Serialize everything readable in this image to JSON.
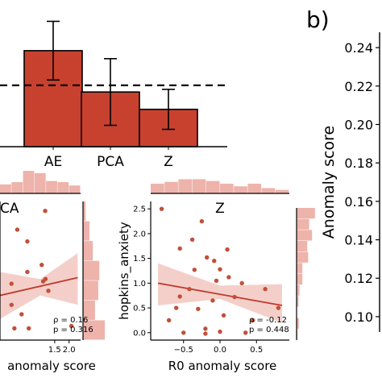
{
  "panel_label": "b)",
  "colors": {
    "bar": "#c8412f",
    "bar_edge": "#000000",
    "scatter": "#c0503a",
    "fit_line": "#c0392b",
    "ci_band": "#f2c7c0",
    "hist": "#eeb3ab"
  },
  "chart_data": [
    {
      "type": "bar",
      "categories": [
        "AE",
        "PCA",
        "Z"
      ],
      "values": [
        0.242,
        0.211,
        0.198
      ],
      "errors": [
        0.022,
        0.025,
        0.015
      ],
      "reference_line": 0.216,
      "reference_line_style": "dashed",
      "ylim": [
        0.17,
        0.28
      ],
      "xlabel": "",
      "ylabel": ""
    },
    {
      "type": "scatter",
      "panel": "PCA",
      "title": "CA",
      "xlabel": "anomaly score",
      "ylabel": "",
      "x_ticks": [
        "1.5",
        "2.0"
      ],
      "xlim": [
        -0.4,
        2.4
      ],
      "ylim": [
        -0.25,
        2.7
      ],
      "points": [
        {
          "x": 1.17,
          "y": 2.5
        },
        {
          "x": 0.2,
          "y": 2.1
        },
        {
          "x": 0.55,
          "y": 1.85
        },
        {
          "x": 1.05,
          "y": 1.35
        },
        {
          "x": 0.55,
          "y": 1.2
        },
        {
          "x": 1.18,
          "y": 1.05
        },
        {
          "x": 1.1,
          "y": 1.0
        },
        {
          "x": 0.0,
          "y": 0.95
        },
        {
          "x": 1.28,
          "y": 0.8
        },
        {
          "x": 0.0,
          "y": 0.5
        },
        {
          "x": 0.35,
          "y": 0.3
        },
        {
          "x": 0.1,
          "y": 0.0
        },
        {
          "x": 0.6,
          "y": 0.0
        },
        {
          "x": 2.08,
          "y": 0.05
        }
      ],
      "fit": {
        "x": [
          -0.4,
          2.3
        ],
        "y": [
          0.7,
          1.08
        ]
      },
      "ci_upper": {
        "x": [
          -0.4,
          1.0,
          2.3
        ],
        "y": [
          1.2,
          1.05,
          1.6
        ]
      },
      "ci_lower": {
        "x": [
          -0.4,
          1.0,
          2.3
        ],
        "y": [
          0.2,
          0.7,
          0.5
        ]
      },
      "annotation": {
        "rho": "ρ = 0.16",
        "p": "p = 0.316"
      },
      "top_hist": [
        0.4,
        0.5,
        1.0,
        0.9,
        0.55,
        0.5,
        0.35
      ],
      "right_hist": [
        0.12,
        0.3,
        0.45,
        0.75,
        0.7,
        0.55,
        1.0
      ]
    },
    {
      "type": "scatter",
      "panel": "Z",
      "title": "Z",
      "xlabel": "R0 anomaly score",
      "ylabel": "hopkins_anxiety",
      "x_ticks": [
        "−0.5",
        "0.0",
        "0.5"
      ],
      "x_tick_values": [
        -0.5,
        0.0,
        0.5
      ],
      "y_ticks": [
        "0.0",
        "0.5",
        "1.0",
        "1.5",
        "2.0",
        "2.5"
      ],
      "y_tick_values": [
        0.0,
        0.5,
        1.0,
        1.5,
        2.0,
        2.5
      ],
      "xlim": [
        -0.95,
        0.95
      ],
      "ylim": [
        -0.15,
        2.65
      ],
      "points": [
        {
          "x": -0.8,
          "y": 2.5
        },
        {
          "x": -0.25,
          "y": 2.25
        },
        {
          "x": -0.38,
          "y": 1.88
        },
        {
          "x": -0.55,
          "y": 1.7
        },
        {
          "x": 0.1,
          "y": 1.68
        },
        {
          "x": -0.18,
          "y": 1.52
        },
        {
          "x": -0.08,
          "y": 1.45
        },
        {
          "x": -0.35,
          "y": 1.27
        },
        {
          "x": 0.0,
          "y": 1.28
        },
        {
          "x": 0.12,
          "y": 1.12
        },
        {
          "x": -0.05,
          "y": 1.05
        },
        {
          "x": 0.3,
          "y": 1.0
        },
        {
          "x": 0.62,
          "y": 0.88
        },
        {
          "x": -0.42,
          "y": 0.88
        },
        {
          "x": -0.55,
          "y": 0.73
        },
        {
          "x": 0.2,
          "y": 0.72
        },
        {
          "x": -0.1,
          "y": 0.65
        },
        {
          "x": -0.6,
          "y": 0.5
        },
        {
          "x": 0.8,
          "y": 0.5
        },
        {
          "x": -0.3,
          "y": 0.48
        },
        {
          "x": 0.05,
          "y": 0.35
        },
        {
          "x": -0.7,
          "y": 0.25
        },
        {
          "x": 0.45,
          "y": 0.25
        },
        {
          "x": -0.2,
          "y": 0.08
        },
        {
          "x": -0.5,
          "y": 0.0
        },
        {
          "x": 0.0,
          "y": 0.02
        },
        {
          "x": 0.35,
          "y": 0.0
        },
        {
          "x": -0.2,
          "y": -0.02
        }
      ],
      "fit": {
        "x": [
          -0.85,
          0.85
        ],
        "y": [
          1.0,
          0.55
        ]
      },
      "ci_upper": {
        "x": [
          -0.85,
          0.0,
          0.85
        ],
        "y": [
          1.4,
          0.95,
          0.98
        ]
      },
      "ci_lower": {
        "x": [
          -0.85,
          0.0,
          0.85
        ],
        "y": [
          0.55,
          0.68,
          0.2
        ]
      },
      "annotation": {
        "rho": "ρ = -0.12",
        "p": "p = 0.448"
      },
      "top_hist": [
        0.55,
        0.65,
        0.8,
        0.8,
        0.7,
        0.55,
        0.4,
        0.55,
        0.3,
        0.2
      ],
      "right_hist": [
        0.95,
        0.65,
        0.8,
        0.55,
        0.6,
        0.3,
        0.3,
        0.15,
        0.1,
        0.0,
        0.12,
        0.05
      ]
    },
    {
      "type": "axis",
      "panel": "b",
      "ylabel": "Anomaly score",
      "y_ticks": [
        "0.10",
        "0.12",
        "0.14",
        "0.16",
        "0.18",
        "0.20",
        "0.22",
        "0.24"
      ],
      "y_tick_values": [
        0.1,
        0.12,
        0.14,
        0.16,
        0.18,
        0.2,
        0.22,
        0.24
      ],
      "ylim": [
        0.092,
        0.248
      ]
    }
  ]
}
